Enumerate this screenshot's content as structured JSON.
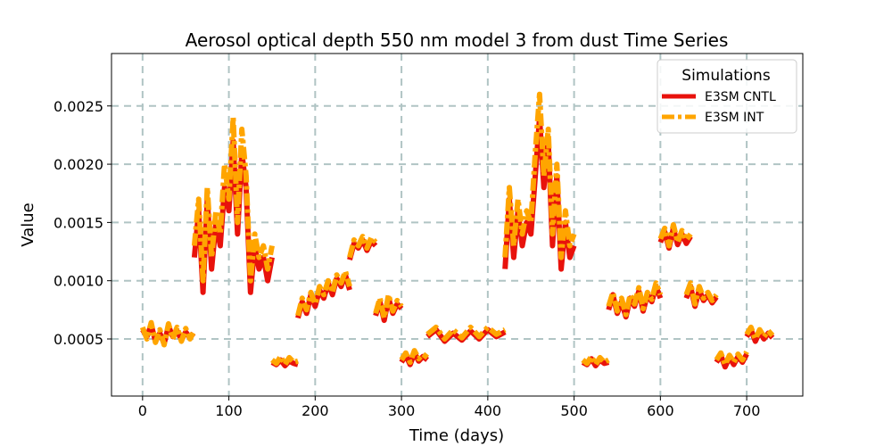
{
  "chart_data": {
    "type": "line",
    "title": "Aerosol optical depth 550 nm model 3 from dust Time Series",
    "xlabel": "Time (days)",
    "ylabel": "Value",
    "xlim": [
      -36,
      765
    ],
    "ylim": [
      1e-05,
      0.00295
    ],
    "xticks": [
      0,
      100,
      200,
      300,
      400,
      500,
      600,
      700
    ],
    "xtick_labels": [
      "0",
      "100",
      "200",
      "300",
      "400",
      "500",
      "600",
      "700"
    ],
    "yticks": [
      0.0005,
      0.001,
      0.0015,
      0.002,
      0.0025
    ],
    "ytick_labels": [
      "0.0005",
      "0.0010",
      "0.0015",
      "0.0020",
      "0.0025"
    ],
    "grid": true,
    "legend": {
      "title": "Simulations",
      "position": "top-right"
    },
    "series": [
      {
        "name": "E3SM CNTL",
        "color": "#e8120c",
        "style": "solid",
        "segments": [
          {
            "x": [
              0,
              5,
              10,
              15,
              20,
              25,
              30,
              35,
              40,
              45,
              50,
              55,
              59
            ],
            "y": [
              0.00058,
              0.00052,
              0.00062,
              0.00048,
              0.00055,
              0.00046,
              0.00061,
              0.00052,
              0.00057,
              0.00049,
              0.00056,
              0.00051,
              0.00055
            ]
          },
          {
            "x": [
              60,
              65,
              70,
              75,
              80,
              85,
              90,
              95,
              100,
              105,
              110,
              115,
              120,
              125,
              130,
              135,
              140,
              145,
              150
            ],
            "y": [
              0.0012,
              0.0016,
              0.0009,
              0.0017,
              0.0011,
              0.0015,
              0.0013,
              0.0018,
              0.0016,
              0.0022,
              0.0014,
              0.0021,
              0.0018,
              0.0009,
              0.0013,
              0.0011,
              0.0012,
              0.001,
              0.0012
            ]
          },
          {
            "x": [
              150,
              155,
              160,
              165,
              170,
              175,
              180
            ],
            "y": [
              0.0003,
              0.00028,
              0.00032,
              0.00027,
              0.00031,
              0.00029,
              0.00028
            ]
          },
          {
            "x": [
              180,
              185,
              190,
              195,
              200,
              205,
              210,
              215,
              220,
              225,
              230,
              235,
              240
            ],
            "y": [
              0.00068,
              0.00082,
              0.00072,
              0.00088,
              0.00078,
              0.00092,
              0.00085,
              0.00098,
              0.00088,
              0.00102,
              0.00095,
              0.00105,
              0.00092
            ]
          },
          {
            "x": [
              240,
              245,
              250,
              255,
              260,
              265,
              270
            ],
            "y": [
              0.00118,
              0.00132,
              0.00128,
              0.00135,
              0.00126,
              0.00134,
              0.0013
            ]
          },
          {
            "x": [
              270,
              275,
              280,
              285,
              290,
              295,
              300
            ],
            "y": [
              0.0007,
              0.00082,
              0.00066,
              0.00085,
              0.00072,
              0.0008,
              0.00076
            ]
          },
          {
            "x": [
              300,
              305,
              310,
              315,
              320,
              325,
              330
            ],
            "y": [
              0.0003,
              0.00036,
              0.00028,
              0.00038,
              0.00031,
              0.00035,
              0.00032
            ]
          },
          {
            "x": [
              330,
              340,
              350,
              360,
              370,
              380,
              390,
              400,
              410,
              420
            ],
            "y": [
              0.00052,
              0.00058,
              0.00048,
              0.00055,
              0.00049,
              0.00057,
              0.0005,
              0.00058,
              0.00052,
              0.00056
            ]
          },
          {
            "x": [
              420,
              425,
              430,
              435,
              440,
              445,
              450,
              455,
              460,
              465,
              470,
              475,
              480,
              485,
              490,
              495,
              500
            ],
            "y": [
              0.0011,
              0.0017,
              0.0012,
              0.0016,
              0.0013,
              0.0015,
              0.0014,
              0.0019,
              0.0024,
              0.0018,
              0.0022,
              0.0013,
              0.0019,
              0.0011,
              0.0015,
              0.0012,
              0.0013
            ]
          },
          {
            "x": [
              510,
              515,
              520,
              525,
              530,
              535,
              540
            ],
            "y": [
              0.0003,
              0.00028,
              0.00033,
              0.00027,
              0.00032,
              0.00029,
              0.0003
            ]
          },
          {
            "x": [
              540,
              545,
              550,
              555,
              560,
              565,
              570,
              575,
              580,
              585,
              590,
              595,
              600
            ],
            "y": [
              0.00075,
              0.00088,
              0.00072,
              0.00082,
              0.00069,
              0.00085,
              0.00078,
              0.00091,
              0.00074,
              0.00088,
              0.00082,
              0.00095,
              0.00085
            ]
          },
          {
            "x": [
              600,
              605,
              610,
              615,
              620,
              625,
              630,
              635
            ],
            "y": [
              0.00133,
              0.00142,
              0.00128,
              0.00145,
              0.00131,
              0.0014,
              0.00132,
              0.00138
            ]
          },
          {
            "x": [
              630,
              635,
              640,
              645,
              650,
              655,
              660,
              665
            ],
            "y": [
              0.00085,
              0.00095,
              0.00078,
              0.00092,
              0.00083,
              0.00088,
              0.00081,
              0.00086
            ]
          },
          {
            "x": [
              665,
              670,
              675,
              680,
              685,
              690,
              695,
              700
            ],
            "y": [
              0.0003,
              0.00036,
              0.00026,
              0.00034,
              0.00028,
              0.00035,
              0.0003,
              0.00037
            ]
          },
          {
            "x": [
              700,
              705,
              710,
              715,
              720,
              725,
              730
            ],
            "y": [
              0.00052,
              0.00058,
              0.00048,
              0.00056,
              0.0005,
              0.00055,
              0.00051
            ]
          }
        ]
      },
      {
        "name": "E3SM INT",
        "color": "#ffa500",
        "style": "dashdot",
        "segments": [
          {
            "x": [
              0,
              5,
              10,
              15,
              20,
              25,
              30,
              35,
              40,
              45,
              50,
              55,
              59
            ],
            "y": [
              0.0006,
              0.0005,
              0.00064,
              0.00047,
              0.00058,
              0.00045,
              0.00063,
              0.0005,
              0.0006,
              0.00048,
              0.00059,
              0.0005,
              0.00056
            ]
          },
          {
            "x": [
              60,
              65,
              70,
              75,
              80,
              85,
              90,
              95,
              100,
              105,
              110,
              115,
              120,
              125,
              130,
              135,
              140,
              145,
              150
            ],
            "y": [
              0.0013,
              0.0017,
              0.001,
              0.0018,
              0.0012,
              0.0016,
              0.0014,
              0.002,
              0.0017,
              0.0024,
              0.0015,
              0.0023,
              0.0019,
              0.001,
              0.0014,
              0.0012,
              0.0013,
              0.0011,
              0.0013
            ]
          },
          {
            "x": [
              150,
              155,
              160,
              165,
              170,
              175,
              180
            ],
            "y": [
              0.00032,
              0.00029,
              0.00035,
              0.00028,
              0.00034,
              0.0003,
              0.00031
            ]
          },
          {
            "x": [
              180,
              185,
              190,
              195,
              200,
              205,
              210,
              215,
              220,
              225,
              230,
              235,
              240
            ],
            "y": [
              0.0007,
              0.00085,
              0.00075,
              0.0009,
              0.0008,
              0.00095,
              0.00088,
              0.001,
              0.0009,
              0.00105,
              0.00098,
              0.00108,
              0.00095
            ]
          },
          {
            "x": [
              240,
              245,
              250,
              255,
              260,
              265,
              270
            ],
            "y": [
              0.0012,
              0.00135,
              0.0013,
              0.00138,
              0.00128,
              0.00137,
              0.00133
            ]
          },
          {
            "x": [
              270,
              275,
              280,
              285,
              290,
              295,
              300
            ],
            "y": [
              0.00072,
              0.00085,
              0.00068,
              0.00088,
              0.00074,
              0.00083,
              0.00078
            ]
          },
          {
            "x": [
              300,
              305,
              310,
              315,
              320,
              325,
              330
            ],
            "y": [
              0.00032,
              0.00038,
              0.0003,
              0.0004,
              0.00033,
              0.00037,
              0.00034
            ]
          },
          {
            "x": [
              330,
              340,
              350,
              360,
              370,
              380,
              390,
              400,
              410,
              420
            ],
            "y": [
              0.00054,
              0.0006,
              0.0005,
              0.00058,
              0.00051,
              0.0006,
              0.00052,
              0.0006,
              0.00054,
              0.00058
            ]
          },
          {
            "x": [
              420,
              425,
              430,
              435,
              440,
              445,
              450,
              455,
              460,
              465,
              470,
              475,
              480,
              485,
              490,
              495,
              500
            ],
            "y": [
              0.0012,
              0.0018,
              0.0013,
              0.0017,
              0.0014,
              0.0016,
              0.0015,
              0.0021,
              0.0026,
              0.0019,
              0.0023,
              0.0014,
              0.002,
              0.0012,
              0.0016,
              0.0013,
              0.0014
            ]
          },
          {
            "x": [
              510,
              515,
              520,
              525,
              530,
              535,
              540
            ],
            "y": [
              0.00032,
              0.00029,
              0.00035,
              0.00028,
              0.00034,
              0.0003,
              0.00032
            ]
          },
          {
            "x": [
              540,
              545,
              550,
              555,
              560,
              565,
              570,
              575,
              580,
              585,
              590,
              595,
              600
            ],
            "y": [
              0.00078,
              0.0009,
              0.00074,
              0.00085,
              0.00071,
              0.00088,
              0.0008,
              0.00094,
              0.00076,
              0.0009,
              0.00084,
              0.00098,
              0.00088
            ]
          },
          {
            "x": [
              600,
              605,
              610,
              615,
              620,
              625,
              630,
              635
            ],
            "y": [
              0.00136,
              0.00145,
              0.0013,
              0.00148,
              0.00133,
              0.00143,
              0.00135,
              0.0014
            ]
          },
          {
            "x": [
              630,
              635,
              640,
              645,
              650,
              655,
              660,
              665
            ],
            "y": [
              0.00088,
              0.00098,
              0.0008,
              0.00095,
              0.00085,
              0.0009,
              0.00083,
              0.00088
            ]
          },
          {
            "x": [
              665,
              670,
              675,
              680,
              685,
              690,
              695,
              700
            ],
            "y": [
              0.00032,
              0.00038,
              0.00028,
              0.00036,
              0.0003,
              0.00037,
              0.00032,
              0.00039
            ]
          },
          {
            "x": [
              700,
              705,
              710,
              715,
              720,
              725,
              730
            ],
            "y": [
              0.00054,
              0.0006,
              0.0005,
              0.00058,
              0.00052,
              0.00057,
              0.00053
            ]
          }
        ]
      }
    ]
  }
}
